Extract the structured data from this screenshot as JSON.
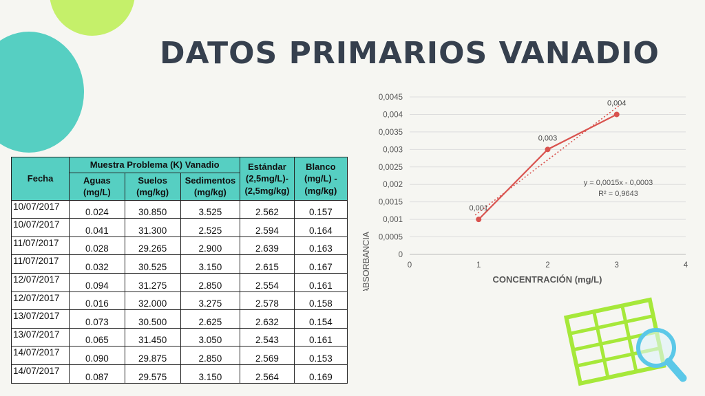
{
  "title": "DATOS PRIMARIOS VANADIO",
  "table": {
    "header": {
      "fecha": "Fecha",
      "muestra": "Muestra Problema (K) Vanadio",
      "estandar": "Estándar (2,5mg/L)-(2,5mg/kg)",
      "blanco": "Blanco (mg/L) -(mg/kg)",
      "aguas": "Aguas (mg/L)",
      "suelos": "Suelos (mg/kg)",
      "sedimentos": "Sedimentos (mg/kg)"
    },
    "rows": [
      [
        "10/07/2017",
        "0.024",
        "30.850",
        "3.525",
        "2.562",
        "0.157"
      ],
      [
        "10/07/2017",
        "0.041",
        "31.300",
        "2.525",
        "2.594",
        "0.164"
      ],
      [
        "11/07/2017",
        "0.028",
        "29.265",
        "2.900",
        "2.639",
        "0.163"
      ],
      [
        "11/07/2017",
        "0.032",
        "30.525",
        "3.150",
        "2.615",
        "0.167"
      ],
      [
        "12/07/2017",
        "0.094",
        "31.275",
        "2.850",
        "2.554",
        "0.161"
      ],
      [
        "12/07/2017",
        "0.016",
        "32.000",
        "3.275",
        "2.578",
        "0.158"
      ],
      [
        "13/07/2017",
        "0.073",
        "30.500",
        "2.625",
        "2.632",
        "0.154"
      ],
      [
        "13/07/2017",
        "0.065",
        "31.450",
        "3.050",
        "2.543",
        "0.161"
      ],
      [
        "14/07/2017",
        "0.090",
        "29.875",
        "2.850",
        "2.569",
        "0.153"
      ],
      [
        "14/07/2017",
        "0.087",
        "29.575",
        "3.150",
        "2.564",
        "0.169"
      ]
    ]
  },
  "chart_data": {
    "type": "line",
    "title": "",
    "xlabel": "CONCENTRACIÓN (mg/L)",
    "ylabel": "ABSORBANCIA",
    "xlim": [
      0,
      4
    ],
    "ylim": [
      0,
      0.0045
    ],
    "x_ticks": [
      "0",
      "1",
      "2",
      "3",
      "4"
    ],
    "y_ticks": [
      "0",
      "0,0005",
      "0,001",
      "0,0015",
      "0,002",
      "0,0025",
      "0,003",
      "0,0035",
      "0,004",
      "0,0045"
    ],
    "grid": true,
    "series": [
      {
        "x": [
          1,
          2,
          3
        ],
        "y": [
          0.001,
          0.003,
          0.004
        ],
        "labels": [
          "0,001",
          "0,003",
          "0,004"
        ],
        "color": "#d9534f"
      }
    ],
    "trendline": {
      "slope": 0.0015,
      "intercept": -0.0003,
      "equation": "y = 0,0015x - 0,0003",
      "r2": "R² = 0,9643",
      "color": "#d9534f"
    }
  },
  "colors": {
    "background": "#f6f6f2",
    "teal": "#56cfc2",
    "lime": "#c5f06a",
    "title": "#36404e",
    "series": "#d9534f",
    "icon_grid": "#a6e83a",
    "icon_magnifier": "#5bc8e8"
  },
  "icons": {
    "decoration": "spreadsheet-magnifier-icon"
  }
}
